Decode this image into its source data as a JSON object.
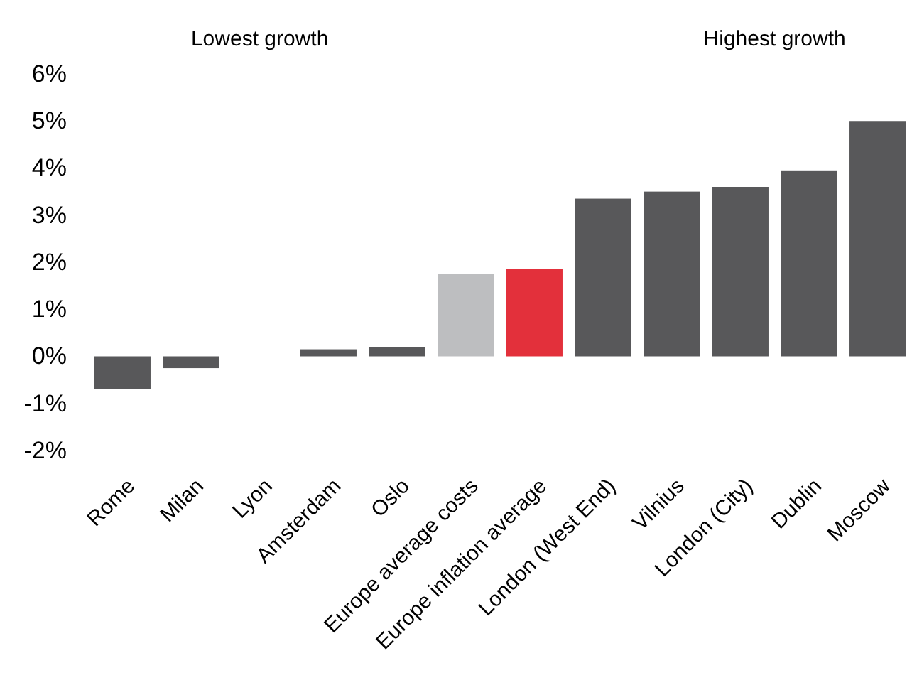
{
  "chart_data": {
    "type": "bar",
    "categories": [
      "Rome",
      "Milan",
      "Lyon",
      "Amsterdam",
      "Oslo",
      "Europe average costs",
      "Europe inflation average",
      "London (West End)",
      "Vilnius",
      "London (City)",
      "Dublin",
      "Moscow"
    ],
    "values": [
      -0.7,
      -0.25,
      0,
      0.15,
      0.2,
      1.75,
      1.85,
      3.35,
      3.5,
      3.6,
      3.95,
      5.0
    ],
    "colors": [
      "#58585a",
      "#58585a",
      "#58585a",
      "#58585a",
      "#58585a",
      "#bdbec0",
      "#e3303b",
      "#58585a",
      "#58585a",
      "#58585a",
      "#58585a",
      "#58585a"
    ],
    "ylim": [
      -2,
      6
    ],
    "yticks": [
      {
        "value": -2,
        "label": "-2%"
      },
      {
        "value": -1,
        "label": "-1%"
      },
      {
        "value": 0,
        "label": "0%"
      },
      {
        "value": 1,
        "label": "1%"
      },
      {
        "value": 2,
        "label": "2%"
      },
      {
        "value": 3,
        "label": "3%"
      },
      {
        "value": 4,
        "label": "4%"
      },
      {
        "value": 5,
        "label": "5%"
      },
      {
        "value": 6,
        "label": "6%"
      }
    ],
    "annotations": [
      "Lowest growth",
      "Highest growth"
    ],
    "grid": false
  }
}
